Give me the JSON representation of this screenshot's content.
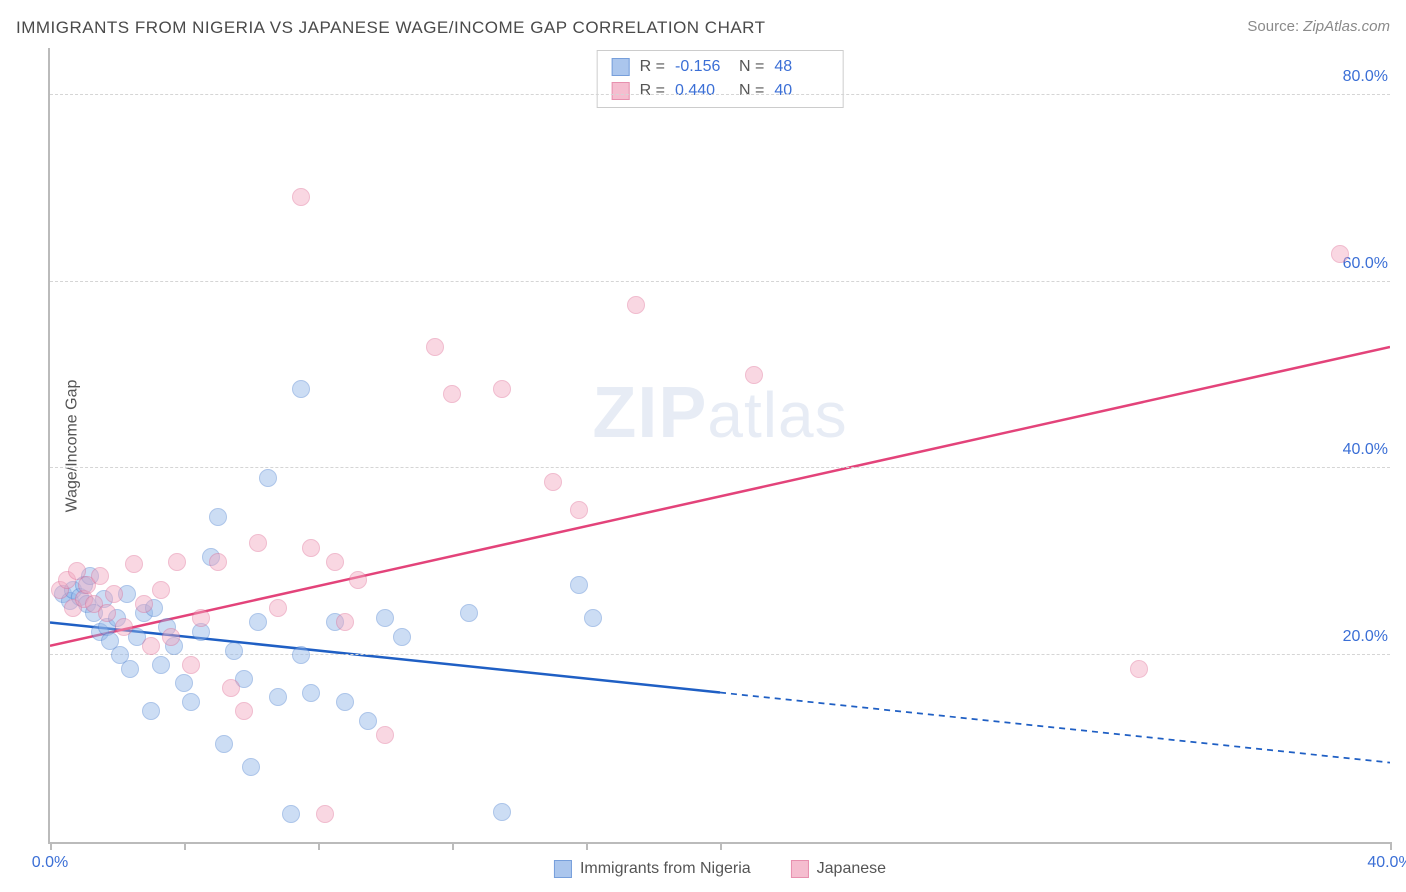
{
  "title": "IMMIGRANTS FROM NIGERIA VS JAPANESE WAGE/INCOME GAP CORRELATION CHART",
  "source_prefix": "Source:",
  "source_site": "ZipAtlas.com",
  "ylabel": "Wage/Income Gap",
  "watermark_bold": "ZIP",
  "watermark_rest": "atlas",
  "chart": {
    "type": "scatter",
    "xlim": [
      0,
      40
    ],
    "ylim": [
      0,
      85
    ],
    "xtick_positions": [
      0,
      4,
      8,
      12,
      16,
      20,
      40
    ],
    "xtick_labels": {
      "0": "0.0%",
      "40": "40.0%"
    },
    "ytick_positions": [
      20,
      40,
      60,
      80
    ],
    "ytick_labels": [
      "20.0%",
      "40.0%",
      "60.0%",
      "80.0%"
    ],
    "grid_color": "#d5d5d5",
    "axis_color": "#bbbbbb",
    "background_color": "#ffffff",
    "marker_radius": 9,
    "marker_opacity": 0.45,
    "line_width": 2.5,
    "series": [
      {
        "name": "Immigrants from Nigeria",
        "color_fill": "#8fb4e8",
        "color_stroke": "#4a7fd0",
        "line_color": "#1f5fc4",
        "R_label": "R =",
        "R": "-0.156",
        "N_label": "N =",
        "N": "48",
        "trend": {
          "y_at_x0": 23.5,
          "y_at_xmax": 8.5,
          "solid_until_x": 20
        },
        "points": [
          [
            0.4,
            26.5
          ],
          [
            0.6,
            25.8
          ],
          [
            0.7,
            27.0
          ],
          [
            0.9,
            26.2
          ],
          [
            1.0,
            27.5
          ],
          [
            1.1,
            25.5
          ],
          [
            1.2,
            28.5
          ],
          [
            1.3,
            24.5
          ],
          [
            1.5,
            22.5
          ],
          [
            1.6,
            26.0
          ],
          [
            1.7,
            23.0
          ],
          [
            1.8,
            21.5
          ],
          [
            2.0,
            24.0
          ],
          [
            2.1,
            20.0
          ],
          [
            2.3,
            26.5
          ],
          [
            2.4,
            18.5
          ],
          [
            2.6,
            22.0
          ],
          [
            2.8,
            24.5
          ],
          [
            3.0,
            14.0
          ],
          [
            3.1,
            25.0
          ],
          [
            3.3,
            19.0
          ],
          [
            3.5,
            23.0
          ],
          [
            3.7,
            21.0
          ],
          [
            4.0,
            17.0
          ],
          [
            4.2,
            15.0
          ],
          [
            4.5,
            22.5
          ],
          [
            4.8,
            30.5
          ],
          [
            5.0,
            34.8
          ],
          [
            5.2,
            10.5
          ],
          [
            5.5,
            20.5
          ],
          [
            5.8,
            17.5
          ],
          [
            6.0,
            8.0
          ],
          [
            6.2,
            23.5
          ],
          [
            6.5,
            39.0
          ],
          [
            6.8,
            15.5
          ],
          [
            7.2,
            3.0
          ],
          [
            7.5,
            20.0
          ],
          [
            7.5,
            48.5
          ],
          [
            7.8,
            16.0
          ],
          [
            8.5,
            23.5
          ],
          [
            8.8,
            15.0
          ],
          [
            9.5,
            13.0
          ],
          [
            10.0,
            24.0
          ],
          [
            10.5,
            22.0
          ],
          [
            12.5,
            24.5
          ],
          [
            13.5,
            3.2
          ],
          [
            15.8,
            27.5
          ],
          [
            16.2,
            24.0
          ]
        ]
      },
      {
        "name": "Japanese",
        "color_fill": "#f2a8c0",
        "color_stroke": "#e06b94",
        "line_color": "#e3437a",
        "R_label": "R =",
        "R": "0.440",
        "N_label": "N =",
        "N": "40",
        "trend": {
          "y_at_x0": 21.0,
          "y_at_xmax": 53.0,
          "solid_until_x": 40
        },
        "points": [
          [
            0.3,
            27.0
          ],
          [
            0.5,
            28.0
          ],
          [
            0.7,
            25.0
          ],
          [
            0.8,
            29.0
          ],
          [
            1.0,
            26.0
          ],
          [
            1.1,
            27.5
          ],
          [
            1.3,
            25.5
          ],
          [
            1.5,
            28.5
          ],
          [
            1.7,
            24.5
          ],
          [
            1.9,
            26.5
          ],
          [
            2.2,
            23.0
          ],
          [
            2.5,
            29.8
          ],
          [
            2.8,
            25.5
          ],
          [
            3.0,
            21.0
          ],
          [
            3.3,
            27.0
          ],
          [
            3.6,
            22.0
          ],
          [
            3.8,
            30.0
          ],
          [
            4.2,
            19.0
          ],
          [
            4.5,
            24.0
          ],
          [
            5.0,
            30.0
          ],
          [
            5.4,
            16.5
          ],
          [
            5.8,
            14.0
          ],
          [
            6.2,
            32.0
          ],
          [
            6.8,
            25.0
          ],
          [
            7.5,
            69.0
          ],
          [
            7.8,
            31.5
          ],
          [
            8.2,
            3.0
          ],
          [
            8.5,
            30.0
          ],
          [
            8.8,
            23.5
          ],
          [
            9.2,
            28.0
          ],
          [
            10.0,
            11.5
          ],
          [
            11.5,
            53.0
          ],
          [
            12.0,
            48.0
          ],
          [
            13.5,
            48.5
          ],
          [
            15.0,
            38.5
          ],
          [
            15.8,
            35.5
          ],
          [
            17.5,
            57.5
          ],
          [
            21.0,
            50.0
          ],
          [
            32.5,
            18.5
          ],
          [
            38.5,
            63.0
          ]
        ]
      }
    ]
  }
}
